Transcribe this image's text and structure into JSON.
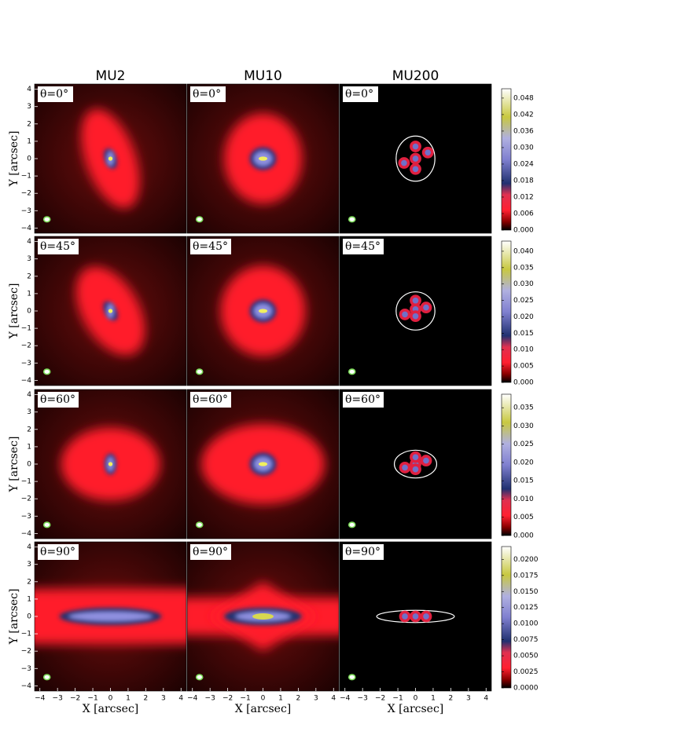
{
  "chart_data": {
    "type": "image-grid",
    "column_titles": [
      "MU2",
      "MU10",
      "MU200"
    ],
    "panel_labels": [
      "θ=0°",
      "θ=45°",
      "θ=60°",
      "θ=90°"
    ],
    "xlabel": "X [arcsec]",
    "ylabel": "Y [arcsec]",
    "xlim": [
      -4.3,
      4.3
    ],
    "ylim": [
      -4.3,
      4.3
    ],
    "xticks": [
      {
        "value": -4,
        "label": "−4"
      },
      {
        "value": -3,
        "label": "−3"
      },
      {
        "value": -2,
        "label": "−2"
      },
      {
        "value": -1,
        "label": "−1"
      },
      0,
      1,
      2,
      3,
      4
    ],
    "yticks": [
      {
        "value": -4,
        "label": "−4"
      },
      {
        "value": -3,
        "label": "−3"
      },
      {
        "value": -2,
        "label": "−2"
      },
      {
        "value": -1,
        "label": "−1"
      },
      0,
      1,
      2,
      3,
      4
    ],
    "colorbars": [
      {
        "clim": [
          0,
          0.0514
        ],
        "ticks": [
          {
            "value": 0,
            "label": "0.000"
          },
          0.006,
          0.012,
          0.018,
          0.024,
          {
            "value": 0.03,
            "label": "0.030"
          },
          0.036,
          0.042,
          0.048
        ]
      },
      {
        "clim": [
          0,
          0.0431
        ],
        "ticks": [
          {
            "value": 0,
            "label": "0.000"
          },
          0.005,
          {
            "value": 0.01,
            "label": "0.010"
          },
          0.015,
          {
            "value": 0.02,
            "label": "0.020"
          },
          0.025,
          {
            "value": 0.03,
            "label": "0.030"
          },
          0.035,
          {
            "value": 0.04,
            "label": "0.040"
          }
        ]
      },
      {
        "clim": [
          0,
          0.0387
        ],
        "ticks": [
          {
            "value": 0,
            "label": "0.000"
          },
          0.005,
          {
            "value": 0.01,
            "label": "0.010"
          },
          0.015,
          {
            "value": 0.02,
            "label": "0.020"
          },
          0.025,
          {
            "value": 0.03,
            "label": "0.030"
          },
          0.035
        ]
      },
      {
        "clim": [
          0,
          0.022
        ],
        "ticks": [
          {
            "value": 0,
            "label": "0.0000"
          },
          0.0025,
          {
            "value": 0.005,
            "label": "0.0050"
          },
          0.0075,
          {
            "value": 0.01,
            "label": "0.0100"
          },
          0.0125,
          {
            "value": 0.015,
            "label": "0.0150"
          },
          0.0175,
          {
            "value": 0.02,
            "label": "0.0200"
          }
        ]
      }
    ]
  }
}
